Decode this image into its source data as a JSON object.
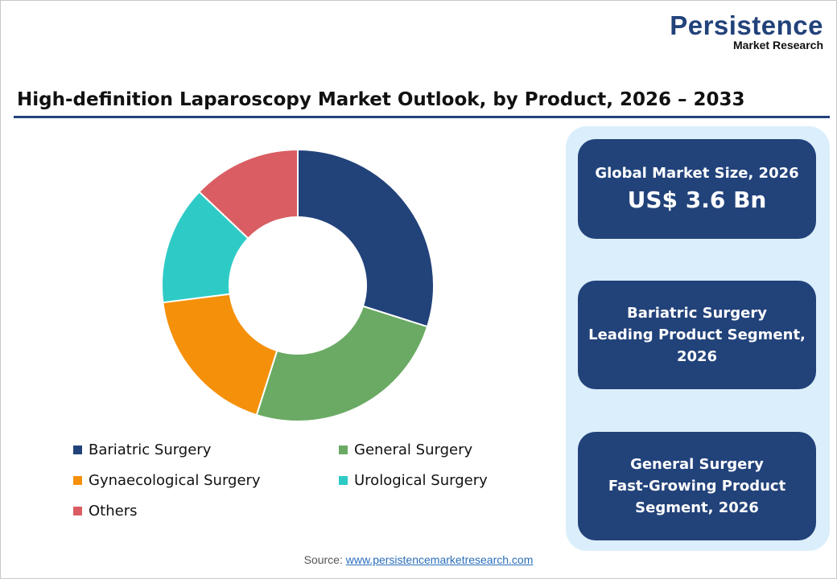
{
  "logo": {
    "line1": "Persistence",
    "line2": "Market Research"
  },
  "title": "High-definition Laparoscopy Market Outlook, by Product, 2026 – 2033",
  "chart_data": {
    "type": "pie",
    "donut": true,
    "categories": [
      "Bariatric Surgery",
      "General Surgery",
      "Gynaecological Surgery",
      "Urological Surgery",
      "Others"
    ],
    "values": [
      29.9,
      25.0,
      18.1,
      14.1,
      12.9
    ],
    "unit": "%",
    "colors": [
      "#22427a",
      "#6aaa64",
      "#f5900a",
      "#2ecbc6",
      "#d95d62"
    ],
    "legend_placement": "bottom"
  },
  "cards": [
    {
      "line1": "Global Market Size, 2026",
      "line2": "US$ 3.6 Bn"
    },
    {
      "line1": "Bariatric Surgery",
      "line2": "Leading Product Segment,",
      "line3": "2026"
    },
    {
      "line1": "General Surgery",
      "line2": "Fast-Growing Product",
      "line3": "Segment, 2026"
    }
  ],
  "source": {
    "label": "Source:",
    "link": "www.persistencemarketresearch.com"
  }
}
